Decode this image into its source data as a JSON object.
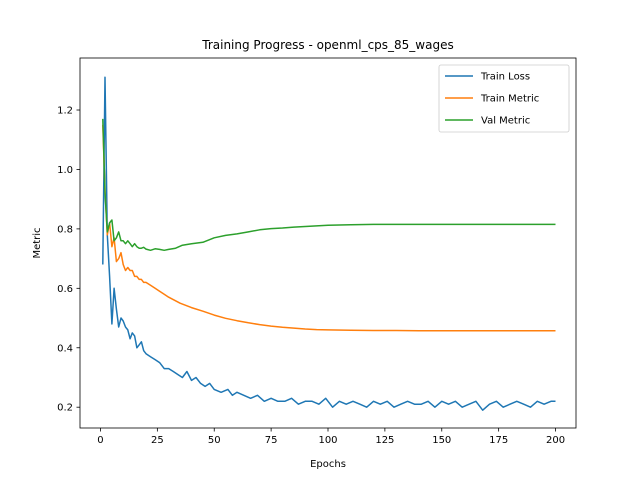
{
  "chart_data": {
    "type": "line",
    "title": "Training Progress - openml_cps_85_wages",
    "xlabel": "Epochs",
    "ylabel": "Metric",
    "xlim": [
      -9,
      209
    ],
    "ylim": [
      0.13,
      1.375
    ],
    "xticks": [
      0,
      25,
      50,
      75,
      100,
      125,
      150,
      175,
      200
    ],
    "yticks": [
      0.2,
      0.4,
      0.6,
      0.8,
      1.0,
      1.2
    ],
    "ytick_labels": [
      "0.2",
      "0.4",
      "0.6",
      "0.8",
      "1.0",
      "1.2"
    ],
    "grid": false,
    "legend_position": "top-right",
    "series": [
      {
        "name": "Train Loss",
        "color": "#1f77b4",
        "x": [
          1,
          2,
          3,
          4,
          5,
          6,
          7,
          8,
          9,
          10,
          11,
          12,
          13,
          14,
          15,
          16,
          17,
          18,
          19,
          20,
          22,
          24,
          26,
          28,
          30,
          32,
          34,
          36,
          38,
          40,
          42,
          44,
          46,
          48,
          50,
          53,
          56,
          58,
          60,
          63,
          66,
          69,
          72,
          75,
          78,
          81,
          84,
          87,
          90,
          93,
          96,
          99,
          102,
          105,
          108,
          111,
          114,
          117,
          120,
          123,
          126,
          129,
          132,
          135,
          138,
          141,
          144,
          147,
          150,
          153,
          156,
          159,
          162,
          165,
          168,
          171,
          174,
          177,
          180,
          183,
          186,
          189,
          192,
          195,
          198,
          200
        ],
        "y": [
          0.68,
          1.31,
          0.78,
          0.64,
          0.48,
          0.6,
          0.53,
          0.47,
          0.5,
          0.49,
          0.47,
          0.46,
          0.43,
          0.45,
          0.44,
          0.4,
          0.41,
          0.42,
          0.39,
          0.38,
          0.37,
          0.36,
          0.35,
          0.33,
          0.33,
          0.32,
          0.31,
          0.3,
          0.32,
          0.29,
          0.3,
          0.28,
          0.27,
          0.28,
          0.26,
          0.25,
          0.26,
          0.24,
          0.25,
          0.24,
          0.23,
          0.24,
          0.22,
          0.23,
          0.22,
          0.22,
          0.23,
          0.21,
          0.22,
          0.22,
          0.21,
          0.23,
          0.2,
          0.22,
          0.21,
          0.22,
          0.21,
          0.2,
          0.22,
          0.21,
          0.22,
          0.2,
          0.21,
          0.22,
          0.21,
          0.21,
          0.22,
          0.2,
          0.22,
          0.21,
          0.22,
          0.2,
          0.21,
          0.22,
          0.19,
          0.21,
          0.22,
          0.2,
          0.21,
          0.22,
          0.21,
          0.2,
          0.22,
          0.21,
          0.22,
          0.22
        ]
      },
      {
        "name": "Train Metric",
        "color": "#ff7f0e",
        "x": [
          1,
          2,
          3,
          4,
          5,
          6,
          7,
          8,
          9,
          10,
          11,
          12,
          13,
          14,
          15,
          16,
          17,
          18,
          19,
          20,
          22,
          24,
          26,
          28,
          30,
          35,
          40,
          45,
          50,
          55,
          60,
          65,
          70,
          75,
          80,
          85,
          90,
          95,
          100,
          110,
          120,
          130,
          140,
          150,
          160,
          170,
          180,
          190,
          200
        ],
        "y": [
          1.15,
          0.93,
          0.78,
          0.82,
          0.74,
          0.77,
          0.69,
          0.7,
          0.72,
          0.68,
          0.66,
          0.67,
          0.66,
          0.66,
          0.64,
          0.64,
          0.63,
          0.63,
          0.62,
          0.62,
          0.61,
          0.6,
          0.59,
          0.58,
          0.57,
          0.55,
          0.535,
          0.523,
          0.51,
          0.499,
          0.491,
          0.484,
          0.478,
          0.473,
          0.469,
          0.466,
          0.463,
          0.461,
          0.46,
          0.459,
          0.458,
          0.458,
          0.457,
          0.457,
          0.457,
          0.457,
          0.457,
          0.457,
          0.457
        ]
      },
      {
        "name": "Val Metric",
        "color": "#2ca02c",
        "x": [
          1,
          2,
          3,
          4,
          5,
          6,
          7,
          8,
          9,
          10,
          11,
          12,
          13,
          14,
          15,
          16,
          17,
          18,
          19,
          20,
          22,
          24,
          26,
          28,
          30,
          33,
          36,
          40,
          45,
          50,
          55,
          60,
          65,
          70,
          75,
          80,
          85,
          90,
          95,
          100,
          110,
          120,
          130,
          140,
          150,
          160,
          170,
          180,
          190,
          200
        ],
        "y": [
          1.17,
          0.92,
          0.79,
          0.82,
          0.83,
          0.76,
          0.77,
          0.79,
          0.76,
          0.76,
          0.75,
          0.76,
          0.75,
          0.74,
          0.75,
          0.74,
          0.735,
          0.735,
          0.738,
          0.732,
          0.728,
          0.733,
          0.731,
          0.728,
          0.731,
          0.735,
          0.745,
          0.75,
          0.755,
          0.77,
          0.778,
          0.783,
          0.79,
          0.797,
          0.801,
          0.803,
          0.806,
          0.808,
          0.81,
          0.812,
          0.814,
          0.815,
          0.815,
          0.815,
          0.815,
          0.815,
          0.815,
          0.815,
          0.815,
          0.815
        ]
      }
    ]
  }
}
